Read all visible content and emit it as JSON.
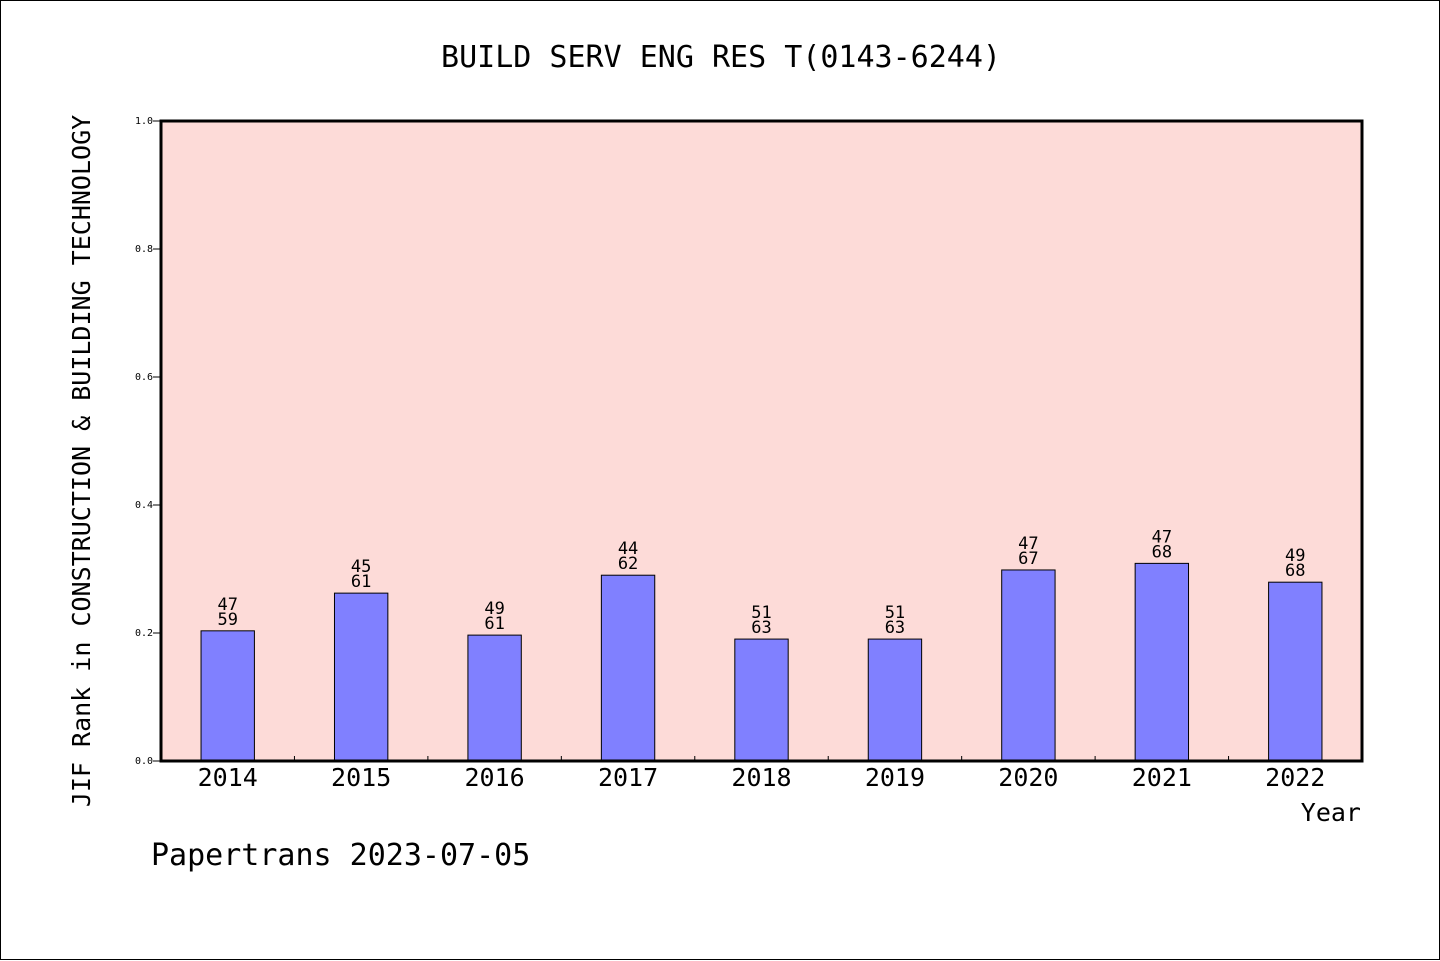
{
  "chart_data": {
    "type": "bar",
    "title": "BUILD SERV ENG RES T(0143-6244)",
    "xlabel": "Year",
    "ylabel": "JIF Rank in CONSTRUCTION & BUILDING TECHNOLOGY",
    "ylim": [
      0,
      1
    ],
    "yticks": [
      "0.0",
      "0.2",
      "0.4",
      "0.6",
      "0.8",
      "1.0"
    ],
    "categories": [
      "2014",
      "2015",
      "2016",
      "2017",
      "2018",
      "2019",
      "2020",
      "2021",
      "2022"
    ],
    "values": [
      0.2034,
      0.2623,
      0.1967,
      0.2903,
      0.1905,
      0.1905,
      0.2985,
      0.3088,
      0.2794
    ],
    "labels": [
      {
        "rank": "47",
        "total": "59"
      },
      {
        "rank": "45",
        "total": "61"
      },
      {
        "rank": "49",
        "total": "61"
      },
      {
        "rank": "44",
        "total": "62"
      },
      {
        "rank": "51",
        "total": "63"
      },
      {
        "rank": "51",
        "total": "63"
      },
      {
        "rank": "47",
        "total": "67"
      },
      {
        "rank": "47",
        "total": "68"
      },
      {
        "rank": "49",
        "total": "68"
      }
    ],
    "grid": false,
    "colors": {
      "plot_bg": "#fddbd8",
      "bar": "#8080ff",
      "border": "#000000"
    }
  },
  "footer": "Papertrans 2023-07-05"
}
